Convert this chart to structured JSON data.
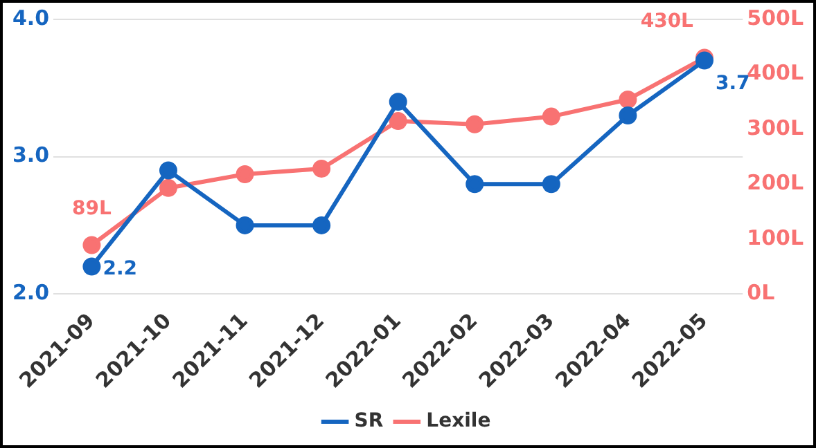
{
  "chart_data": {
    "type": "line",
    "categories": [
      "2021-09",
      "2021-10",
      "2021-11",
      "2021-12",
      "2022-01",
      "2022-02",
      "2022-03",
      "2022-04",
      "2022-05"
    ],
    "series": [
      {
        "name": "SR",
        "color": "#1565c0",
        "values": [
          2.2,
          2.9,
          2.5,
          2.5,
          3.4,
          2.8,
          2.8,
          3.3,
          3.7
        ],
        "value_labels": [
          "2.2",
          null,
          null,
          null,
          null,
          null,
          null,
          null,
          "3.7"
        ]
      },
      {
        "name": "Lexile",
        "color": "#f87272",
        "axis": "y2",
        "values": [
          89,
          193,
          218,
          228,
          315,
          309,
          323,
          354,
          430
        ],
        "value_labels": [
          "89L",
          null,
          null,
          null,
          null,
          null,
          null,
          null,
          "430L"
        ]
      }
    ],
    "ylim": [
      2,
      4
    ],
    "yticks": [
      {
        "value": 2,
        "label": "2.0"
      },
      {
        "value": 3,
        "label": "3.0"
      },
      {
        "value": 4,
        "label": "4.0"
      }
    ],
    "y2lim": [
      0,
      500
    ],
    "y2ticks": [
      {
        "value": 0,
        "label": "0L"
      },
      {
        "value": 100,
        "label": "100L"
      },
      {
        "value": 200,
        "label": "200L"
      },
      {
        "value": 300,
        "label": "300L"
      },
      {
        "value": 400,
        "label": "400L"
      },
      {
        "value": 500,
        "label": "500L"
      }
    ],
    "grid": "y",
    "legend": "bottom",
    "marker": "circle",
    "line_style": "solid"
  }
}
